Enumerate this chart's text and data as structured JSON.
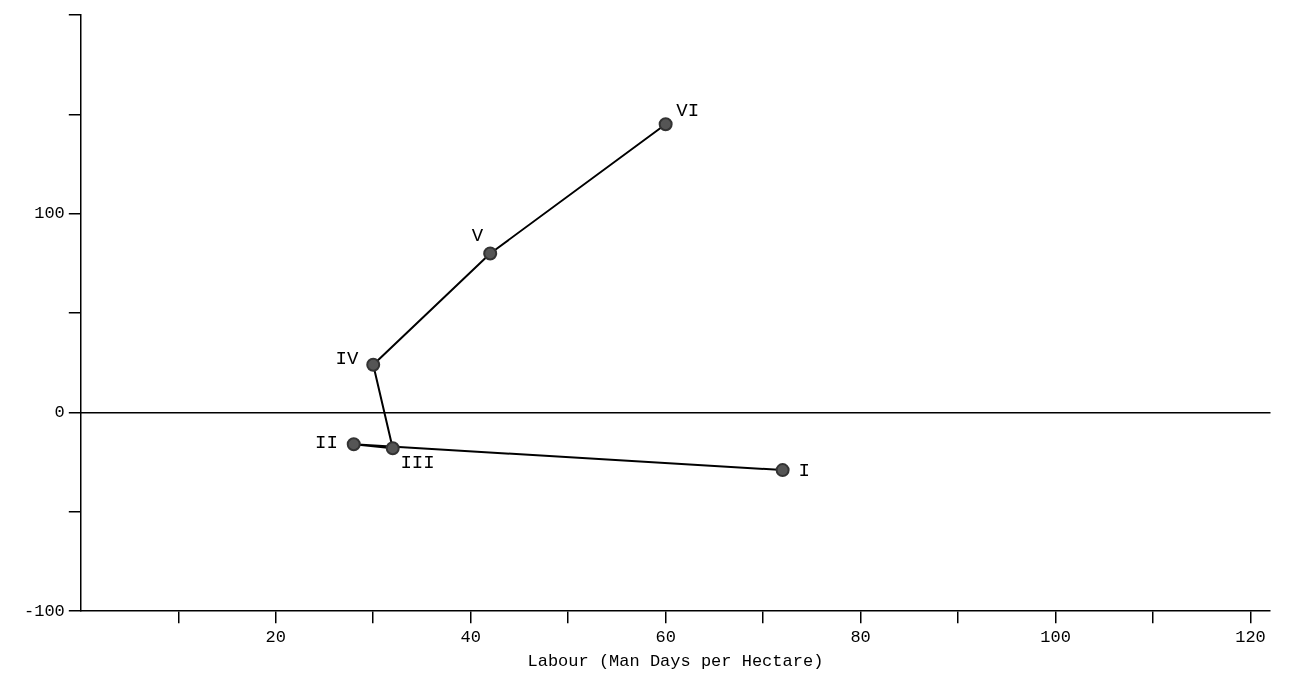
{
  "chart_data": {
    "type": "line",
    "xlabel": "Labour (Man Days per Hectare)",
    "x": [
      72,
      28,
      32,
      30,
      42,
      60
    ],
    "values": [
      -29,
      -16,
      -18,
      24,
      80,
      145
    ],
    "color": "#000000",
    "marker": "circle",
    "line_style": "solid",
    "grid": false,
    "legend": false,
    "xlim": [
      0,
      122
    ],
    "ylim": [
      -100,
      200
    ],
    "xticks": [
      {
        "value": 10,
        "label": null
      },
      20,
      {
        "value": 30,
        "label": null
      },
      40,
      {
        "value": 50,
        "label": null
      },
      60,
      {
        "value": 70,
        "label": null
      },
      80,
      {
        "value": 90,
        "label": null
      },
      100,
      {
        "value": 110,
        "label": null
      },
      120
    ],
    "yticks": [
      -100,
      {
        "value": -50,
        "label": null
      },
      0,
      {
        "value": 50,
        "label": null
      },
      100,
      {
        "value": 150,
        "label": null
      },
      {
        "value": 200,
        "label": null
      }
    ],
    "ref_lines": [
      {
        "axis": "y",
        "value": 0,
        "color": "#000000"
      }
    ],
    "annotations": [
      {
        "text": "I",
        "x": 72,
        "y": -29
      },
      {
        "text": "II",
        "x": 28,
        "y": -16
      },
      {
        "text": "III",
        "x": 32,
        "y": -18
      },
      {
        "text": "IV",
        "x": 30,
        "y": 24
      },
      {
        "text": "V",
        "x": 42,
        "y": 80
      },
      {
        "text": "VI",
        "x": 60,
        "y": 145
      }
    ]
  }
}
